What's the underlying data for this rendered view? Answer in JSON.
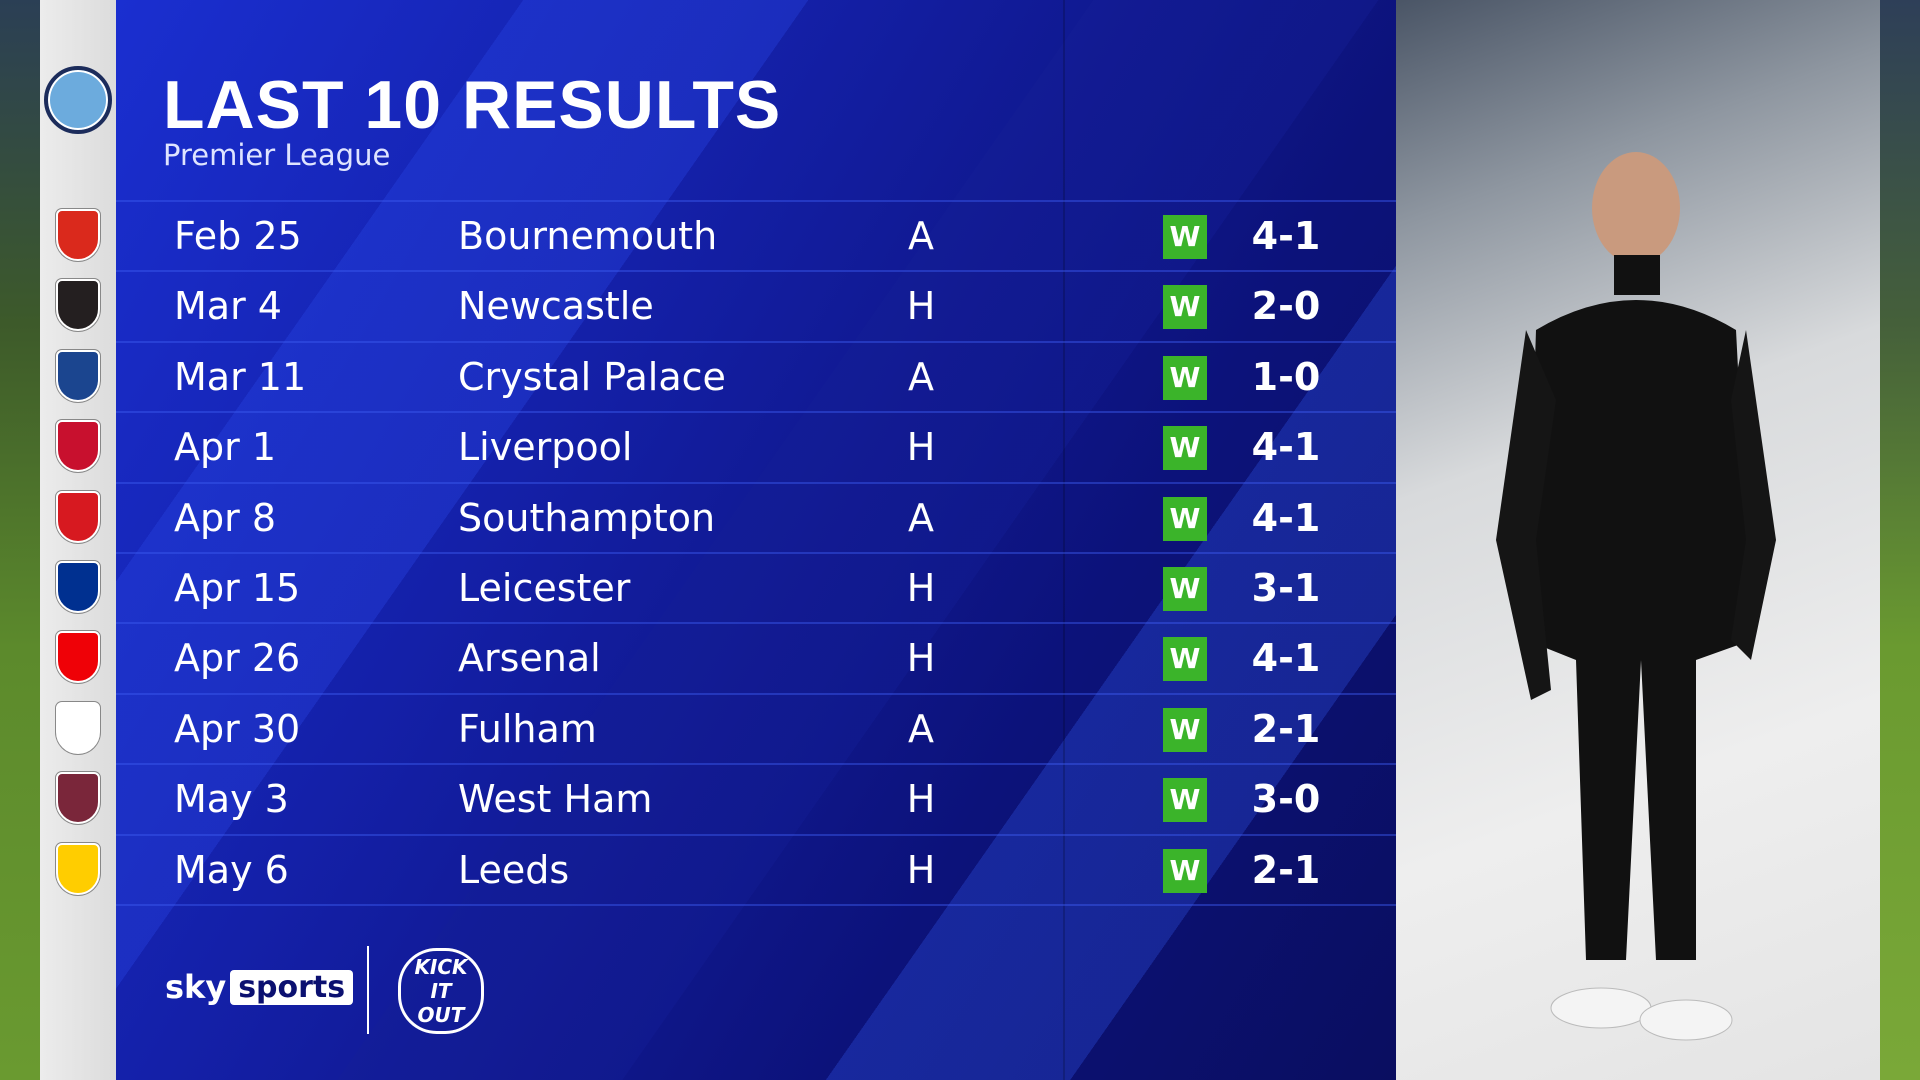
{
  "header": {
    "title": "LAST 10 RESULTS",
    "subtitle": "Premier League"
  },
  "team_crest": "manchester-city-crest",
  "results": [
    {
      "date": "Feb 25",
      "opponent": "Bournemouth",
      "venue": "A",
      "result": "W",
      "score": "4-1",
      "crest_color": "#da291c"
    },
    {
      "date": "Mar 4",
      "opponent": "Newcastle",
      "venue": "H",
      "result": "W",
      "score": "2-0",
      "crest_color": "#241f20"
    },
    {
      "date": "Mar 11",
      "opponent": "Crystal Palace",
      "venue": "A",
      "result": "W",
      "score": "1-0",
      "crest_color": "#1b458f"
    },
    {
      "date": "Apr 1",
      "opponent": "Liverpool",
      "venue": "H",
      "result": "W",
      "score": "4-1",
      "crest_color": "#c8102e"
    },
    {
      "date": "Apr 8",
      "opponent": "Southampton",
      "venue": "A",
      "result": "W",
      "score": "4-1",
      "crest_color": "#d71920"
    },
    {
      "date": "Apr 15",
      "opponent": "Leicester",
      "venue": "H",
      "result": "W",
      "score": "3-1",
      "crest_color": "#003090"
    },
    {
      "date": "Apr 26",
      "opponent": "Arsenal",
      "venue": "H",
      "result": "W",
      "score": "4-1",
      "crest_color": "#ef0107"
    },
    {
      "date": "Apr 30",
      "opponent": "Fulham",
      "venue": "A",
      "result": "W",
      "score": "2-1",
      "crest_color": "#ffffff"
    },
    {
      "date": "May 3",
      "opponent": "West Ham",
      "venue": "H",
      "result": "W",
      "score": "3-0",
      "crest_color": "#7a263a"
    },
    {
      "date": "May 6",
      "opponent": "Leeds",
      "venue": "H",
      "result": "W",
      "score": "2-1",
      "crest_color": "#ffcd00"
    }
  ],
  "branding": {
    "sky": "sky",
    "sports": "sports",
    "kick_it_out": "KICK IT OUT"
  },
  "colors": {
    "win": "#3bb42a",
    "panel": "#1420a8"
  }
}
